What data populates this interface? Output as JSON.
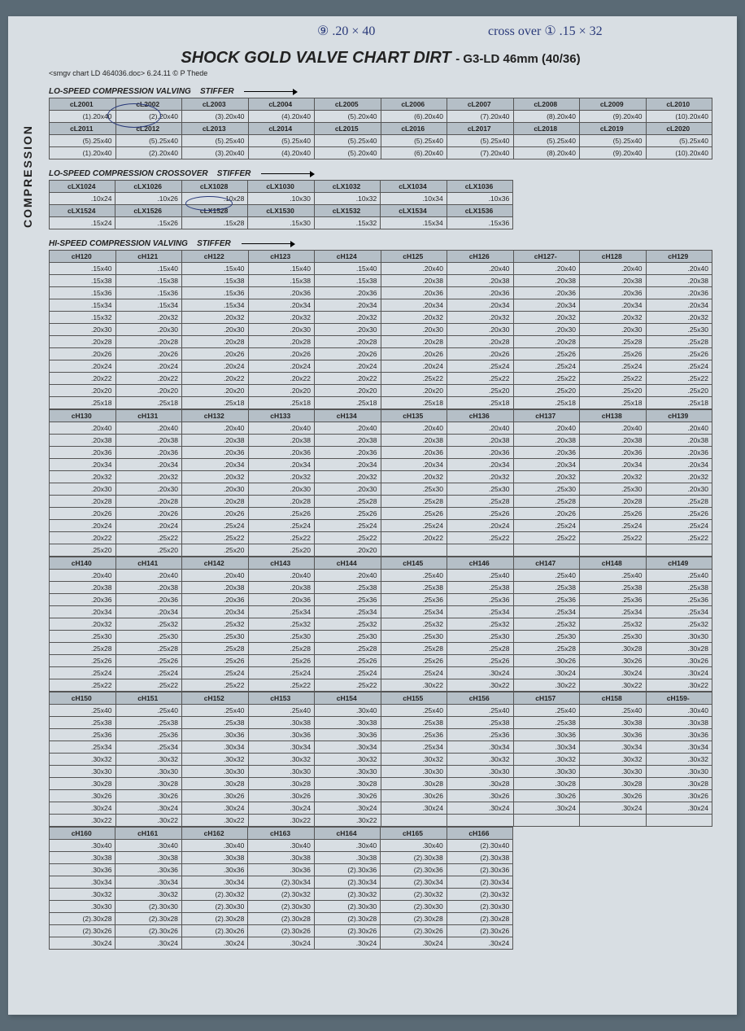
{
  "page_title": "SHOCK GOLD VALVE CHART DIRT",
  "page_subtitle": "- G3-LD 46mm (40/36)",
  "meta_line": "<smgv chart LD 464036.doc> 6.24.11 © P Thede",
  "side_label": "COMPRESSION",
  "handwriting": {
    "top1": "⑨  .20 × 40",
    "top2": "cross over ① .15 × 32"
  },
  "lo_speed": {
    "title": "LO-SPEED COMPRESSION VALVING",
    "stiffer": "STIFFER",
    "headers1": [
      "cL2001",
      "cL2002",
      "cL2003",
      "cL2004",
      "cL2005",
      "cL2006",
      "cL2007",
      "cL2008",
      "cL2009",
      "cL2010"
    ],
    "row1": [
      "(1).20x40",
      "(2).20x40",
      "(3).20x40",
      "(4).20x40",
      "(5).20x40",
      "(6).20x40",
      "(7).20x40",
      "(8).20x40",
      "(9).20x40",
      "(10).20x40"
    ],
    "headers2": [
      "cL2011",
      "cL2012",
      "cL2013",
      "cL2014",
      "cL2015",
      "cL2016",
      "cL2017",
      "cL2018",
      "cL2019",
      "cL2020"
    ],
    "row2a": [
      "(5).25x40",
      "(5).25x40",
      "(5).25x40",
      "(5).25x40",
      "(5).25x40",
      "(5).25x40",
      "(5).25x40",
      "(5).25x40",
      "(5).25x40",
      "(5).25x40"
    ],
    "row2b": [
      "(1).20x40",
      "(2).20x40",
      "(3).20x40",
      "(4).20x40",
      "(5).20x40",
      "(6).20x40",
      "(7).20x40",
      "(8).20x40",
      "(9).20x40",
      "(10).20x40"
    ]
  },
  "crossover": {
    "title": "LO-SPEED COMPRESSION CROSSOVER",
    "stiffer": "STIFFER",
    "headers1": [
      "cLX1024",
      "cLX1026",
      "cLX1028",
      "cLX1030",
      "cLX1032",
      "cLX1034",
      "cLX1036"
    ],
    "row1": [
      ".10x24",
      ".10x26",
      ".10x28",
      ".10x30",
      ".10x32",
      ".10x34",
      ".10x36"
    ],
    "headers2": [
      "cLX1524",
      "cLX1526",
      "cLX1528",
      "cLX1530",
      "cLX1532",
      "cLX1534",
      "cLX1536"
    ],
    "row2": [
      ".15x24",
      ".15x26",
      ".15x28",
      ".15x30",
      ".15x32",
      ".15x34",
      ".15x36"
    ]
  },
  "hi_speed_title": "HI-SPEED COMPRESSION VALVING",
  "hi_speed_stiffer": "STIFFER",
  "blocks": [
    {
      "headers": [
        "cH120",
        "cH121",
        "cH122",
        "cH123",
        "cH124",
        "cH125",
        "cH126",
        "cH127-",
        "cH128",
        "cH129"
      ],
      "rows": [
        [
          ".15x40",
          ".15x40",
          ".15x40",
          ".15x40",
          ".15x40",
          ".20x40",
          ".20x40",
          ".20x40",
          ".20x40",
          ".20x40"
        ],
        [
          ".15x38",
          ".15x38",
          ".15x38",
          ".15x38",
          ".15x38",
          ".20x38",
          ".20x38",
          ".20x38",
          ".20x38",
          ".20x38"
        ],
        [
          ".15x36",
          ".15x36",
          ".15x36",
          ".20x36",
          ".20x36",
          ".20x36",
          ".20x36",
          ".20x36",
          ".20x36",
          ".20x36"
        ],
        [
          ".15x34",
          ".15x34",
          ".15x34",
          ".20x34",
          ".20x34",
          ".20x34",
          ".20x34",
          ".20x34",
          ".20x34",
          ".20x34"
        ],
        [
          ".15x32",
          ".20x32",
          ".20x32",
          ".20x32",
          ".20x32",
          ".20x32",
          ".20x32",
          ".20x32",
          ".20x32",
          ".20x32"
        ],
        [
          ".20x30",
          ".20x30",
          ".20x30",
          ".20x30",
          ".20x30",
          ".20x30",
          ".20x30",
          ".20x30",
          ".20x30",
          ".25x30"
        ],
        [
          ".20x28",
          ".20x28",
          ".20x28",
          ".20x28",
          ".20x28",
          ".20x28",
          ".20x28",
          ".20x28",
          ".25x28",
          ".25x28"
        ],
        [
          ".20x26",
          ".20x26",
          ".20x26",
          ".20x26",
          ".20x26",
          ".20x26",
          ".20x26",
          ".25x26",
          ".25x26",
          ".25x26"
        ],
        [
          ".20x24",
          ".20x24",
          ".20x24",
          ".20x24",
          ".20x24",
          ".20x24",
          ".25x24",
          ".25x24",
          ".25x24",
          ".25x24"
        ],
        [
          ".20x22",
          ".20x22",
          ".20x22",
          ".20x22",
          ".20x22",
          ".25x22",
          ".25x22",
          ".25x22",
          ".25x22",
          ".25x22"
        ],
        [
          ".20x20",
          ".20x20",
          ".20x20",
          ".20x20",
          ".20x20",
          ".20x20",
          ".25x20",
          ".25x20",
          ".25x20",
          ".25x20"
        ],
        [
          ".25x18",
          ".25x18",
          ".25x18",
          ".25x18",
          ".25x18",
          ".25x18",
          ".25x18",
          ".25x18",
          ".25x18",
          ".25x18"
        ]
      ]
    },
    {
      "headers": [
        "cH130",
        "cH131",
        "cH132",
        "cH133",
        "cH134",
        "cH135",
        "cH136",
        "cH137",
        "cH138",
        "cH139"
      ],
      "rows": [
        [
          ".20x40",
          ".20x40",
          ".20x40",
          ".20x40",
          ".20x40",
          ".20x40",
          ".20x40",
          ".20x40",
          ".20x40",
          ".20x40"
        ],
        [
          ".20x38",
          ".20x38",
          ".20x38",
          ".20x38",
          ".20x38",
          ".20x38",
          ".20x38",
          ".20x38",
          ".20x38",
          ".20x38"
        ],
        [
          ".20x36",
          ".20x36",
          ".20x36",
          ".20x36",
          ".20x36",
          ".20x36",
          ".20x36",
          ".20x36",
          ".20x36",
          ".20x36"
        ],
        [
          ".20x34",
          ".20x34",
          ".20x34",
          ".20x34",
          ".20x34",
          ".20x34",
          ".20x34",
          ".20x34",
          ".20x34",
          ".20x34"
        ],
        [
          ".20x32",
          ".20x32",
          ".20x32",
          ".20x32",
          ".20x32",
          ".20x32",
          ".20x32",
          ".20x32",
          ".20x32",
          ".20x32"
        ],
        [
          ".20x30",
          ".20x30",
          ".20x30",
          ".20x30",
          ".20x30",
          ".25x30",
          ".25x30",
          ".25x30",
          ".25x30",
          ".20x30"
        ],
        [
          ".20x28",
          ".20x28",
          ".20x28",
          ".20x28",
          ".25x28",
          ".25x28",
          ".25x28",
          ".25x28",
          ".20x28",
          ".25x28"
        ],
        [
          ".20x26",
          ".20x26",
          ".20x26",
          ".25x26",
          ".25x26",
          ".25x26",
          ".25x26",
          ".20x26",
          ".25x26",
          ".25x26"
        ],
        [
          ".20x24",
          ".20x24",
          ".25x24",
          ".25x24",
          ".25x24",
          ".25x24",
          ".20x24",
          ".25x24",
          ".25x24",
          ".25x24"
        ],
        [
          ".20x22",
          ".25x22",
          ".25x22",
          ".25x22",
          ".25x22",
          ".20x22",
          ".25x22",
          ".25x22",
          ".25x22",
          ".25x22"
        ],
        [
          ".25x20",
          ".25x20",
          ".25x20",
          ".25x20",
          ".20x20",
          "",
          "",
          "",
          "",
          ""
        ]
      ]
    },
    {
      "headers": [
        "cH140",
        "cH141",
        "cH142",
        "cH143",
        "cH144",
        "cH145",
        "cH146",
        "cH147",
        "cH148",
        "cH149"
      ],
      "rows": [
        [
          ".20x40",
          ".20x40",
          ".20x40",
          ".20x40",
          ".20x40",
          ".25x40",
          ".25x40",
          ".25x40",
          ".25x40",
          ".25x40"
        ],
        [
          ".20x38",
          ".20x38",
          ".20x38",
          ".20x38",
          ".25x38",
          ".25x38",
          ".25x38",
          ".25x38",
          ".25x38",
          ".25x38"
        ],
        [
          ".20x36",
          ".20x36",
          ".20x36",
          ".20x36",
          ".25x36",
          ".25x36",
          ".25x36",
          ".25x36",
          ".25x36",
          ".25x36"
        ],
        [
          ".20x34",
          ".20x34",
          ".20x34",
          ".25x34",
          ".25x34",
          ".25x34",
          ".25x34",
          ".25x34",
          ".25x34",
          ".25x34"
        ],
        [
          ".20x32",
          ".25x32",
          ".25x32",
          ".25x32",
          ".25x32",
          ".25x32",
          ".25x32",
          ".25x32",
          ".25x32",
          ".25x32"
        ],
        [
          ".25x30",
          ".25x30",
          ".25x30",
          ".25x30",
          ".25x30",
          ".25x30",
          ".25x30",
          ".25x30",
          ".25x30",
          ".30x30"
        ],
        [
          ".25x28",
          ".25x28",
          ".25x28",
          ".25x28",
          ".25x28",
          ".25x28",
          ".25x28",
          ".25x28",
          ".30x28",
          ".30x28"
        ],
        [
          ".25x26",
          ".25x26",
          ".25x26",
          ".25x26",
          ".25x26",
          ".25x26",
          ".25x26",
          ".30x26",
          ".30x26",
          ".30x26"
        ],
        [
          ".25x24",
          ".25x24",
          ".25x24",
          ".25x24",
          ".25x24",
          ".25x24",
          ".30x24",
          ".30x24",
          ".30x24",
          ".30x24"
        ],
        [
          ".25x22",
          ".25x22",
          ".25x22",
          ".25x22",
          ".25x22",
          ".30x22",
          ".30x22",
          ".30x22",
          ".30x22",
          ".30x22"
        ]
      ]
    },
    {
      "headers": [
        "cH150",
        "cH151",
        "cH152",
        "cH153",
        "cH154",
        "cH155",
        "cH156",
        "cH157",
        "cH158",
        "cH159-"
      ],
      "rows": [
        [
          ".25x40",
          ".25x40",
          ".25x40",
          ".25x40",
          ".30x40",
          ".25x40",
          ".25x40",
          ".25x40",
          ".25x40",
          ".30x40"
        ],
        [
          ".25x38",
          ".25x38",
          ".25x38",
          ".30x38",
          ".30x38",
          ".25x38",
          ".25x38",
          ".25x38",
          ".30x38",
          ".30x38"
        ],
        [
          ".25x36",
          ".25x36",
          ".30x36",
          ".30x36",
          ".30x36",
          ".25x36",
          ".25x36",
          ".30x36",
          ".30x36",
          ".30x36"
        ],
        [
          ".25x34",
          ".25x34",
          ".30x34",
          ".30x34",
          ".30x34",
          ".25x34",
          ".30x34",
          ".30x34",
          ".30x34",
          ".30x34"
        ],
        [
          ".30x32",
          ".30x32",
          ".30x32",
          ".30x32",
          ".30x32",
          ".30x32",
          ".30x32",
          ".30x32",
          ".30x32",
          ".30x32"
        ],
        [
          ".30x30",
          ".30x30",
          ".30x30",
          ".30x30",
          ".30x30",
          ".30x30",
          ".30x30",
          ".30x30",
          ".30x30",
          ".30x30"
        ],
        [
          ".30x28",
          ".30x28",
          ".30x28",
          ".30x28",
          ".30x28",
          ".30x28",
          ".30x28",
          ".30x28",
          ".30x28",
          ".30x28"
        ],
        [
          ".30x26",
          ".30x26",
          ".30x26",
          ".30x26",
          ".30x26",
          ".30x26",
          ".30x26",
          ".30x26",
          ".30x26",
          ".30x26"
        ],
        [
          ".30x24",
          ".30x24",
          ".30x24",
          ".30x24",
          ".30x24",
          ".30x24",
          ".30x24",
          ".30x24",
          ".30x24",
          ".30x24"
        ],
        [
          ".30x22",
          ".30x22",
          ".30x22",
          ".30x22",
          ".30x22",
          "",
          "",
          "",
          "",
          ""
        ]
      ]
    },
    {
      "headers": [
        "cH160",
        "cH161",
        "cH162",
        "cH163",
        "cH164",
        "cH165",
        "cH166"
      ],
      "rows": [
        [
          ".30x40",
          ".30x40",
          ".30x40",
          ".30x40",
          ".30x40",
          ".30x40",
          "(2).30x40"
        ],
        [
          ".30x38",
          ".30x38",
          ".30x38",
          ".30x38",
          ".30x38",
          "(2).30x38",
          "(2).30x38"
        ],
        [
          ".30x36",
          ".30x36",
          ".30x36",
          ".30x36",
          "(2).30x36",
          "(2).30x36",
          "(2).30x36"
        ],
        [
          ".30x34",
          ".30x34",
          ".30x34",
          "(2).30x34",
          "(2).30x34",
          "(2).30x34",
          "(2).30x34"
        ],
        [
          ".30x32",
          ".30x32",
          "(2).30x32",
          "(2).30x32",
          "(2).30x32",
          "(2).30x32",
          "(2).30x32"
        ],
        [
          ".30x30",
          "(2).30x30",
          "(2).30x30",
          "(2).30x30",
          "(2).30x30",
          "(2).30x30",
          "(2).30x30"
        ],
        [
          "(2).30x28",
          "(2).30x28",
          "(2).30x28",
          "(2).30x28",
          "(2).30x28",
          "(2).30x28",
          "(2).30x28"
        ],
        [
          "(2).30x26",
          "(2).30x26",
          "(2).30x26",
          "(2).30x26",
          "(2).30x26",
          "(2).30x26",
          "(2).30x26"
        ],
        [
          ".30x24",
          ".30x24",
          ".30x24",
          ".30x24",
          ".30x24",
          ".30x24",
          ".30x24"
        ]
      ]
    }
  ]
}
